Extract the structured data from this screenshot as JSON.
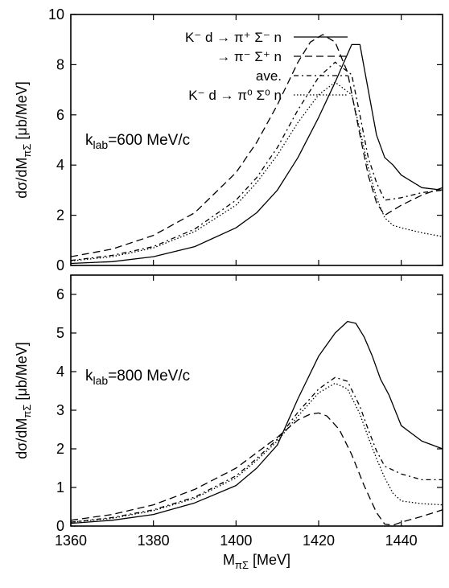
{
  "chart_data": [
    {
      "type": "line",
      "xlim": [
        1360,
        1450
      ],
      "ylim": [
        0,
        10
      ],
      "xticks": [
        1360,
        1380,
        1400,
        1420,
        1440
      ],
      "yticks": [
        0,
        2,
        4,
        6,
        8,
        10
      ],
      "ylabel": "dσ/dM",
      "ylabel_sub": "πΣ",
      "ylabel_unit": "[μb/MeV]",
      "annotation": "k",
      "annotation_sub": "lab",
      "annotation_rest": "=600 MeV/c",
      "legend_placement": "top-right",
      "legend": [
        "K⁻ d → π⁺ Σ⁻ n",
        "→ π⁻ Σ⁺ n",
        "ave.",
        "K⁻ d → π⁰ Σ⁰ n"
      ],
      "series": [
        {
          "name": "K⁻ d → π⁺ Σ⁻ n",
          "style": "solid",
          "x": [
            1360,
            1370,
            1380,
            1390,
            1400,
            1405,
            1410,
            1415,
            1420,
            1424,
            1428,
            1430,
            1432,
            1434,
            1436,
            1438,
            1440,
            1445,
            1450
          ],
          "y": [
            0.08,
            0.15,
            0.35,
            0.75,
            1.5,
            2.1,
            3.0,
            4.3,
            5.9,
            7.3,
            8.8,
            8.8,
            7.0,
            5.2,
            4.3,
            4.0,
            3.6,
            3.1,
            3.0
          ]
        },
        {
          "name": "→ π⁻ Σ⁺ n",
          "style": "dashed",
          "x": [
            1360,
            1370,
            1380,
            1390,
            1400,
            1405,
            1410,
            1415,
            1418,
            1421,
            1424,
            1427,
            1430,
            1432,
            1434,
            1436,
            1440,
            1445,
            1450
          ],
          "y": [
            0.35,
            0.65,
            1.2,
            2.1,
            3.7,
            4.9,
            6.4,
            8.1,
            8.9,
            9.2,
            8.9,
            7.7,
            5.2,
            3.6,
            2.5,
            2.0,
            2.4,
            2.8,
            3.1
          ]
        },
        {
          "name": "ave.",
          "style": "dash-dot",
          "x": [
            1360,
            1370,
            1380,
            1390,
            1400,
            1405,
            1410,
            1415,
            1420,
            1424,
            1428,
            1430,
            1432,
            1434,
            1436,
            1440,
            1445,
            1450
          ],
          "y": [
            0.2,
            0.4,
            0.75,
            1.45,
            2.6,
            3.5,
            4.7,
            6.2,
            7.5,
            8.1,
            7.6,
            6.0,
            4.3,
            3.3,
            2.6,
            2.7,
            2.9,
            3.0
          ]
        },
        {
          "name": "K⁻ d → π⁰ Σ⁰ n",
          "style": "dotted",
          "x": [
            1360,
            1370,
            1380,
            1390,
            1400,
            1405,
            1410,
            1415,
            1420,
            1424,
            1428,
            1430,
            1432,
            1434,
            1436,
            1438,
            1440,
            1445,
            1450
          ],
          "y": [
            0.18,
            0.35,
            0.7,
            1.35,
            2.4,
            3.3,
            4.4,
            5.7,
            6.8,
            7.3,
            6.8,
            5.4,
            3.9,
            2.7,
            1.9,
            1.6,
            1.5,
            1.3,
            1.15
          ]
        }
      ]
    },
    {
      "type": "line",
      "xlim": [
        1360,
        1450
      ],
      "ylim": [
        0,
        6.5
      ],
      "xticks": [
        1360,
        1380,
        1400,
        1420,
        1440
      ],
      "yticks": [
        0,
        1,
        2,
        3,
        4,
        5,
        6
      ],
      "ylabel": "dσ/dM",
      "ylabel_sub": "πΣ",
      "ylabel_unit": "[μb/MeV]",
      "xlabel": "M",
      "xlabel_sub": "πΣ",
      "xlabel_unit": "[MeV]",
      "annotation": "k",
      "annotation_sub": "lab",
      "annotation_rest": "=800 MeV/c",
      "series": [
        {
          "name": "K⁻ d → π⁺ Σ⁻ n",
          "style": "solid",
          "x": [
            1360,
            1370,
            1380,
            1390,
            1400,
            1405,
            1410,
            1415,
            1420,
            1424,
            1427,
            1429,
            1431,
            1433,
            1435,
            1437,
            1440,
            1445,
            1450
          ],
          "y": [
            0.07,
            0.15,
            0.3,
            0.6,
            1.05,
            1.5,
            2.1,
            3.3,
            4.4,
            5.0,
            5.3,
            5.25,
            4.9,
            4.4,
            3.8,
            3.4,
            2.6,
            2.2,
            2.0
          ]
        },
        {
          "name": "→ π⁻ Σ⁺ n",
          "style": "dashed",
          "x": [
            1360,
            1370,
            1380,
            1390,
            1400,
            1405,
            1410,
            1415,
            1418,
            1420,
            1422,
            1425,
            1428,
            1431,
            1434,
            1436,
            1438,
            1440,
            1445,
            1450
          ],
          "y": [
            0.15,
            0.3,
            0.55,
            0.95,
            1.5,
            1.9,
            2.3,
            2.75,
            2.9,
            2.93,
            2.85,
            2.5,
            1.85,
            1.05,
            0.35,
            0.05,
            0.02,
            0.1,
            0.25,
            0.42
          ]
        },
        {
          "name": "ave.",
          "style": "dash-dot",
          "x": [
            1360,
            1370,
            1380,
            1390,
            1400,
            1405,
            1410,
            1415,
            1420,
            1424,
            1427,
            1430,
            1432,
            1434,
            1436,
            1440,
            1445,
            1450
          ],
          "y": [
            0.1,
            0.22,
            0.42,
            0.75,
            1.3,
            1.75,
            2.25,
            2.95,
            3.55,
            3.85,
            3.75,
            3.1,
            2.5,
            1.95,
            1.55,
            1.35,
            1.2,
            1.2
          ]
        },
        {
          "name": "K⁻ d → π⁰ Σ⁰ n",
          "style": "dotted",
          "x": [
            1360,
            1370,
            1380,
            1390,
            1400,
            1405,
            1410,
            1415,
            1420,
            1424,
            1427,
            1430,
            1432,
            1434,
            1436,
            1438,
            1440,
            1445,
            1450
          ],
          "y": [
            0.1,
            0.2,
            0.4,
            0.72,
            1.25,
            1.7,
            2.2,
            2.85,
            3.45,
            3.7,
            3.55,
            2.9,
            2.3,
            1.75,
            1.25,
            0.85,
            0.65,
            0.58,
            0.55
          ]
        }
      ]
    }
  ]
}
